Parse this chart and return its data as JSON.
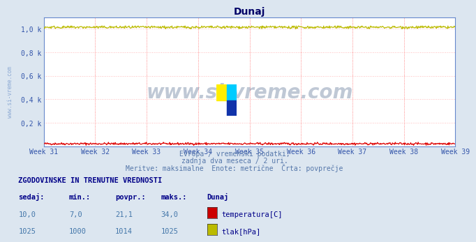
{
  "title": "Dunaj",
  "bg_color": "#dce6f0",
  "plot_bg_color": "#ffffff",
  "grid_color": "#ffbbbb",
  "border_color": "#6688cc",
  "title_color": "#000066",
  "axis_label_color": "#3355aa",
  "watermark_text": "www.si-vreme.com",
  "watermark_color": "#1a3a6a",
  "side_watermark_color": "#7799cc",
  "subtitle_color": "#5577aa",
  "subtitle_lines": [
    "Evropa / vremenski podatki,",
    "zadnja dva meseca / 2 uri.",
    "Meritve: maksimalne  Enote: metrične  Črta: povprečje"
  ],
  "x_ticks_labels": [
    "Week 31",
    "Week 32",
    "Week 33",
    "Week 34",
    "Week 35",
    "Week 36",
    "Week 37",
    "Week 38",
    "Week 39"
  ],
  "x_ticks_pos": [
    0,
    84,
    168,
    252,
    336,
    420,
    504,
    588,
    672
  ],
  "ylim": [
    0,
    1100
  ],
  "ytick_vals": [
    0,
    200,
    400,
    600,
    800,
    1000
  ],
  "ytick_labels": [
    "",
    "0,2 k",
    "0,4 k",
    "0,6 k",
    "0,8 k",
    "1,0 k"
  ],
  "red_line_color": "#dd0000",
  "yellow_line_color": "#bbbb00",
  "n_points": 720,
  "legend_section_title": "ZGODOVINSKE IN TRENUTNE VREDNOSTI",
  "legend_headers": [
    "sedaj:",
    "min.:",
    "povpr.:",
    "maks.:",
    "Dunaj"
  ],
  "legend_row1": [
    "10,0",
    "7,0",
    "21,1",
    "34,0",
    "temperatura[C]"
  ],
  "legend_row2": [
    "1025",
    "1000",
    "1014",
    "1025",
    "tlak[hPa]"
  ],
  "legend_color1": "#cc0000",
  "legend_color2": "#bbbb00",
  "legend_title_color": "#000088",
  "legend_header_color": "#000088",
  "legend_value_color": "#4477aa",
  "legend_label_color": "#000088",
  "vertical_lines_color": "#ff6666",
  "temp_min": 7,
  "temp_max": 34,
  "temp_mean": 21.1,
  "pressure_min": 1000,
  "pressure_max": 1025,
  "pressure_mean": 1014,
  "pressure_noise": 6,
  "temp_noise": 5
}
